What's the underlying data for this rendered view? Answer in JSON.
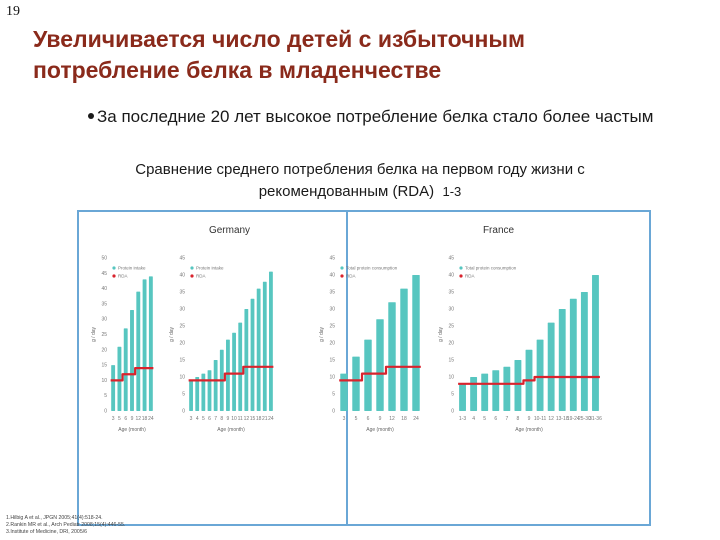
{
  "slide_number": "19",
  "title_lines": [
    "Увеличивается число детей с избыточным",
    "потребление белка в младенчестве"
  ],
  "bullet_text": "За последние 20 лет высокое потребление белка стало более частым",
  "subtitle_line1": "Сравнение среднего потребления белка на первом году жизни с",
  "subtitle_line2": "рекомендованным (RDA)",
  "subtitle_sup": "1-3",
  "colors": {
    "title": "#8a2a1b",
    "bar": "#57c6c0",
    "rda_line": "#d9232d",
    "panel_border": "#6aa7d6"
  },
  "panels": [
    {
      "country": "Germany"
    },
    {
      "country": "France",
      "references": [
        "1.Hilbig A et al., JPGN 2005;41(4):518-24.",
        "2.Rankin MR et al., Arch Pediatr 2008;15(4):446-55.",
        "3.Institute of Medicine, DRI, 2005/6"
      ]
    }
  ],
  "chart_data": [
    {
      "type": "bar",
      "country": "Germany",
      "subplot": "a",
      "legend": [
        "Protein intake",
        "RDA"
      ],
      "categories": [
        "3",
        "5",
        "6",
        "9",
        "12",
        "18",
        "24"
      ],
      "values": [
        15,
        21,
        27,
        33,
        39,
        43,
        44
      ],
      "rda": [
        10,
        10,
        12,
        12,
        14,
        14,
        14
      ],
      "ylim": [
        0,
        50
      ],
      "yticks": [
        "0",
        "5",
        "10",
        "15",
        "20",
        "25",
        "30",
        "35",
        "40",
        "45",
        "50"
      ],
      "ylabel": "g / day",
      "xlabel": "Age (month)"
    },
    {
      "type": "bar",
      "country": "Germany",
      "subplot": "b",
      "legend": [
        "Protein intake",
        "RDA"
      ],
      "categories": [
        "3",
        "4",
        "5",
        "6",
        "7",
        "8",
        "9",
        "10",
        "11",
        "12",
        "15",
        "18",
        "21",
        "24"
      ],
      "values": [
        9,
        10,
        11,
        12,
        15,
        18,
        21,
        23,
        26,
        30,
        33,
        36,
        38,
        41
      ],
      "rda": [
        9,
        9,
        9,
        9,
        9,
        9,
        11,
        11,
        11,
        13,
        13,
        13,
        13,
        13
      ],
      "ylim": [
        0,
        45
      ],
      "yticks": [
        "0",
        "5",
        "10",
        "15",
        "20",
        "25",
        "30",
        "35",
        "40",
        "45"
      ],
      "ylabel": "g / day",
      "xlabel": "Age (month)"
    },
    {
      "type": "bar",
      "country": "France",
      "subplot": "a",
      "legend": [
        "Total protein consumption",
        "RDA"
      ],
      "categories": [
        "3",
        "5",
        "6",
        "9",
        "12",
        "18",
        "24"
      ],
      "values": [
        11,
        16,
        21,
        27,
        32,
        36,
        40
      ],
      "rda": [
        9,
        9,
        11,
        11,
        13,
        13,
        13
      ],
      "ylim": [
        0,
        45
      ],
      "yticks": [
        "0",
        "5",
        "10",
        "15",
        "20",
        "25",
        "30",
        "35",
        "40",
        "45"
      ],
      "ylabel": "g / day",
      "xlabel": "Age (month)"
    },
    {
      "type": "bar",
      "country": "France",
      "subplot": "b",
      "legend": [
        "Total protein consumption",
        "RDA"
      ],
      "categories": [
        "1-3",
        "4",
        "5",
        "6",
        "7",
        "8",
        "9",
        "10-11",
        "12",
        "13-18",
        "19-24",
        "25-30",
        "31-36"
      ],
      "values": [
        8,
        10,
        11,
        12,
        13,
        15,
        18,
        21,
        26,
        30,
        33,
        35,
        40
      ],
      "rda": [
        8,
        8,
        8,
        8,
        8,
        8,
        9,
        10,
        10,
        10,
        10,
        10,
        10
      ],
      "ylim": [
        0,
        45
      ],
      "yticks": [
        "0",
        "5",
        "10",
        "15",
        "20",
        "25",
        "30",
        "35",
        "40",
        "45"
      ],
      "ylabel": "g / day",
      "xlabel": "Age (month)"
    }
  ]
}
